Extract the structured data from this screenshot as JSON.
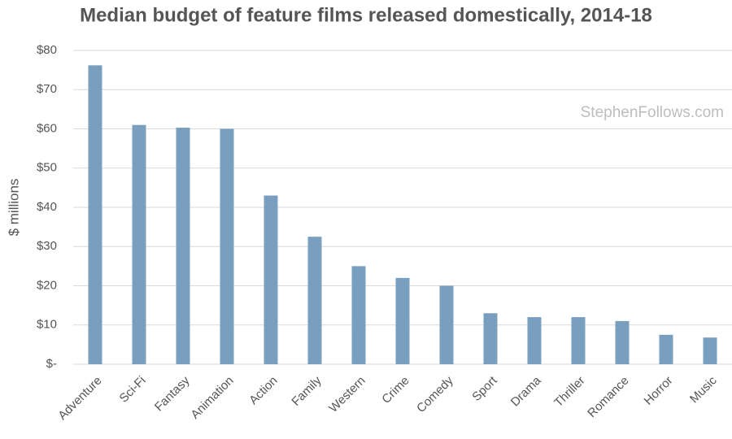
{
  "chart_data": {
    "type": "bar",
    "title": "Median budget of feature films released domestically, 2014-18",
    "y_label": "$ millions",
    "watermark": "StephenFollows.com",
    "categories": [
      "Adventure",
      "Sci-Fi",
      "Fantasy",
      "Animation",
      "Action",
      "Family",
      "Western",
      "Crime",
      "Comedy",
      "Sport",
      "Drama",
      "Thriller",
      "Romance",
      "Horror",
      "Music"
    ],
    "values": [
      76.2,
      61,
      60.3,
      60,
      43,
      32.5,
      25,
      22,
      20,
      13,
      12,
      12,
      11,
      7.5,
      6.8
    ],
    "color": "#7a9fbe",
    "ylim": [
      0,
      80
    ],
    "yticks": [
      {
        "value": 0,
        "label": "$-"
      },
      {
        "value": 10,
        "label": "$10"
      },
      {
        "value": 20,
        "label": "$20"
      },
      {
        "value": 30,
        "label": "$30"
      },
      {
        "value": 40,
        "label": "$40"
      },
      {
        "value": 50,
        "label": "$50"
      },
      {
        "value": 60,
        "label": "$60"
      },
      {
        "value": 70,
        "label": "$70"
      },
      {
        "value": 80,
        "label": "$80"
      }
    ],
    "grid": true
  }
}
